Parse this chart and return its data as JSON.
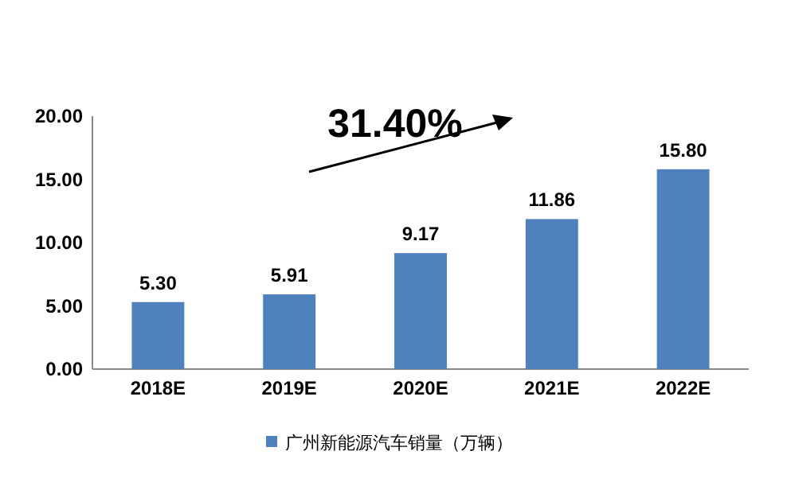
{
  "chart_data": {
    "type": "bar",
    "categories": [
      "2018E",
      "2019E",
      "2020E",
      "2021E",
      "2022E"
    ],
    "series": [
      {
        "name": "广州新能源汽车销量（万辆）",
        "color": "#4f81bd",
        "values": [
          5.3,
          5.91,
          9.17,
          11.86,
          15.8
        ]
      }
    ],
    "ylim": [
      0,
      20
    ],
    "yticks": [
      {
        "value": 0,
        "label": "0.00"
      },
      {
        "value": 5,
        "label": "5.00"
      },
      {
        "value": 10,
        "label": "10.00"
      },
      {
        "value": 15,
        "label": "15.00"
      },
      {
        "value": 20,
        "label": "20.00"
      }
    ],
    "value_labels": [
      "5.30",
      "5.91",
      "9.17",
      "11.86",
      "15.80"
    ],
    "annotations": [
      "31.40%"
    ],
    "legend": "bottom",
    "grid": false
  }
}
